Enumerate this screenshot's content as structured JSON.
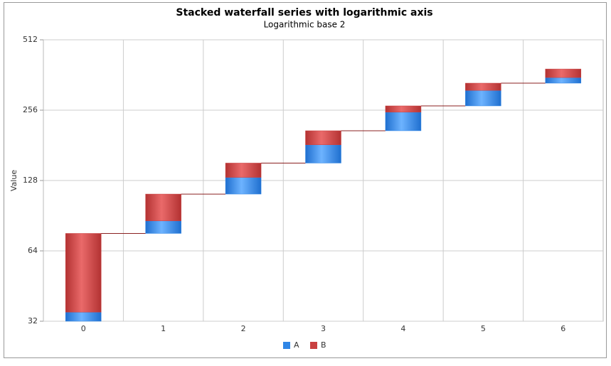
{
  "chart_data": {
    "type": "waterfall",
    "title": "Stacked waterfall series with logarithmic axis",
    "subtitle": "Logarithmic base 2",
    "y_label": "Value",
    "categories": [
      "0",
      "1",
      "2",
      "3",
      "4",
      "5",
      "6"
    ],
    "series": [
      {
        "name": "A",
        "color": "#2f86e6",
        "values": [
          35,
          10,
          20,
          30,
          42,
          44,
          19
        ]
      },
      {
        "name": "B",
        "color": "#c94040",
        "values": [
          41,
          26,
          20,
          27,
          16,
          23,
          31
        ]
      }
    ],
    "log_scale": true,
    "log_base": 2,
    "ylim": [
      32,
      512
    ],
    "yticks": [
      32,
      64,
      128,
      256,
      512
    ],
    "grid": true,
    "legend": "bottom"
  }
}
